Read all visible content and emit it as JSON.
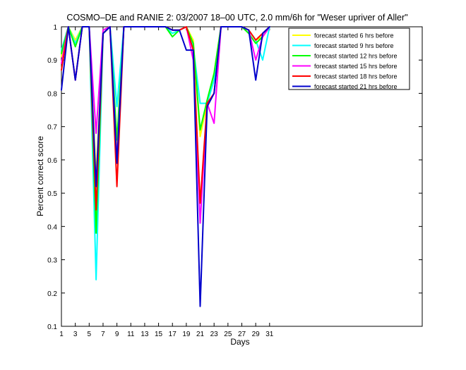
{
  "chart_data": {
    "type": "line",
    "title": "COSMO–DE and RANIE 2: 03/2007 18–00 UTC, 2.0 mm/6h for \"Weser upriver of Aller\"",
    "xlabel": "Days",
    "ylabel": "Percent correct score",
    "xlim": [
      1,
      53
    ],
    "ylim": [
      0.1,
      1
    ],
    "x_ticks": [
      1,
      3,
      5,
      7,
      9,
      11,
      13,
      15,
      17,
      19,
      21,
      23,
      25,
      27,
      29,
      31
    ],
    "y_ticks": [
      0.1,
      0.2,
      0.3,
      0.4,
      0.5,
      0.6,
      0.7,
      0.8,
      0.9,
      1
    ],
    "legend_position": "top-right",
    "grid": false,
    "x": [
      1,
      2,
      3,
      4,
      5,
      6,
      7,
      8,
      9,
      10,
      11,
      12,
      13,
      14,
      15,
      16,
      17,
      18,
      19,
      20,
      21,
      22,
      23,
      24,
      25,
      26,
      27,
      28,
      29,
      30,
      31
    ],
    "series": [
      {
        "name": "forecast started 6 hrs before",
        "color": "#ffff00",
        "values": [
          0.91,
          1,
          0.96,
          1,
          1,
          0.55,
          0.98,
          1,
          0.62,
          1,
          1,
          1,
          1,
          1,
          1,
          1,
          0.98,
          0.99,
          1,
          0.96,
          0.67,
          0.77,
          0.86,
          1,
          1,
          1,
          1,
          0.99,
          0.96,
          0.97,
          1
        ]
      },
      {
        "name": "forecast started 9 hrs before",
        "color": "#00ffff",
        "values": [
          0.93,
          1,
          0.95,
          1,
          1,
          0.24,
          0.98,
          1,
          0.76,
          1,
          1,
          1,
          1,
          1,
          1,
          1,
          0.98,
          0.99,
          1,
          0.94,
          0.77,
          0.77,
          0.84,
          1,
          1,
          1,
          1,
          0.99,
          0.96,
          0.9,
          1
        ]
      },
      {
        "name": "forecast started 12 hrs before",
        "color": "#00ff00",
        "values": [
          0.92,
          1,
          0.94,
          1,
          1,
          0.38,
          0.98,
          1,
          0.66,
          1,
          1,
          1,
          1,
          1,
          1,
          1,
          0.97,
          0.99,
          1,
          0.95,
          0.69,
          0.78,
          0.86,
          1,
          1,
          1,
          1,
          0.98,
          0.95,
          0.97,
          1
        ]
      },
      {
        "name": "forecast started 15 hrs before",
        "color": "#ff00ff",
        "values": [
          0.89,
          1,
          0.84,
          1,
          1,
          0.68,
          0.99,
          1,
          0.6,
          1,
          1,
          1,
          1,
          1,
          1,
          1,
          0.99,
          0.99,
          1,
          0.9,
          0.41,
          0.77,
          0.71,
          1,
          1,
          1,
          1,
          0.99,
          0.9,
          0.97,
          1
        ]
      },
      {
        "name": "forecast started 18 hrs before",
        "color": "#ff0000",
        "values": [
          0.87,
          1,
          0.84,
          1,
          1,
          0.45,
          0.98,
          1,
          0.52,
          1,
          1,
          1,
          1,
          1,
          1,
          1,
          0.99,
          0.99,
          1,
          0.93,
          0.47,
          0.77,
          0.8,
          1,
          1,
          1,
          1,
          0.99,
          0.96,
          0.98,
          1
        ]
      },
      {
        "name": "forecast started 21 hrs before",
        "color": "#0000cc",
        "values": [
          0.81,
          1,
          0.84,
          1,
          1,
          0.52,
          0.98,
          1,
          0.59,
          1,
          1,
          1,
          1,
          1,
          1,
          1,
          0.99,
          0.99,
          0.93,
          0.93,
          0.16,
          0.76,
          0.8,
          1,
          1,
          1,
          1,
          0.99,
          0.84,
          0.98,
          1
        ]
      }
    ]
  }
}
